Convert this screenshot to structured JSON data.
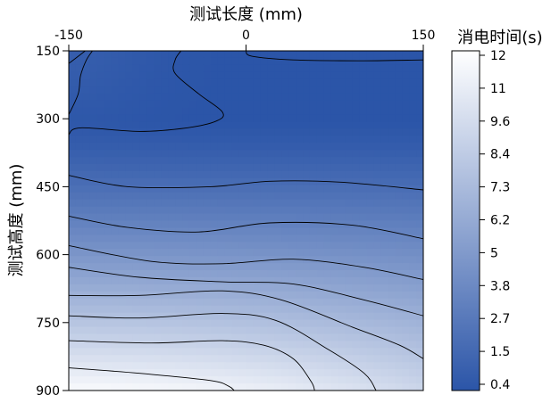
{
  "chart_data": {
    "type": "heatmap",
    "subtype": "filled-contour",
    "title": "",
    "xlabel": "测试长度 (mm)",
    "ylabel": "测试高度 (mm)",
    "x_ticks": [
      "-150",
      "0",
      "150"
    ],
    "x_tick_values": [
      -150,
      0,
      150
    ],
    "x_axis_position": "top",
    "xlim": [
      -150,
      150
    ],
    "y_ticks": [
      "150",
      "300",
      "450",
      "600",
      "750",
      "900"
    ],
    "y_tick_values": [
      150,
      300,
      450,
      600,
      750,
      900
    ],
    "ylim": [
      150,
      900
    ],
    "y_inverted": true,
    "grid": false,
    "colorbar": {
      "label": "消电时间(s)",
      "ticks": [
        "12",
        "11",
        "9.6",
        "8.4",
        "7.3",
        "6.2",
        "5",
        "3.8",
        "2.7",
        "1.5",
        "0.4"
      ],
      "tick_values": [
        12,
        11,
        9.6,
        8.4,
        7.3,
        6.2,
        5,
        3.8,
        2.7,
        1.5,
        0.4
      ],
      "range": [
        0.4,
        12
      ],
      "color_low": "#2b55a8",
      "color_high": "#ffffff",
      "placement": "right"
    },
    "contour_lines": [
      {
        "points": [
          [
            -150,
            178
          ],
          [
            -136,
            150
          ]
        ]
      },
      {
        "points": [
          [
            -150,
            291
          ],
          [
            -142,
            245
          ],
          [
            -140,
            205
          ],
          [
            -135,
            170
          ],
          [
            -130,
            150
          ]
        ]
      },
      {
        "points": [
          [
            -150,
            335
          ],
          [
            -140,
            320
          ],
          [
            -90,
            328
          ],
          [
            -50,
            320
          ],
          [
            -25,
            305
          ],
          [
            -20,
            285
          ],
          [
            -40,
            245
          ],
          [
            -60,
            200
          ],
          [
            -60,
            170
          ],
          [
            -55,
            150
          ]
        ]
      },
      {
        "points": [
          [
            0,
            150
          ],
          [
            5,
            162
          ],
          [
            40,
            170
          ],
          [
            100,
            172
          ],
          [
            150,
            170
          ]
        ]
      },
      {
        "points": [
          [
            -150,
            425
          ],
          [
            -100,
            450
          ],
          [
            -30,
            450
          ],
          [
            20,
            438
          ],
          [
            80,
            440
          ],
          [
            150,
            457
          ]
        ]
      },
      {
        "points": [
          [
            -150,
            515
          ],
          [
            -100,
            540
          ],
          [
            -40,
            550
          ],
          [
            20,
            530
          ],
          [
            90,
            535
          ],
          [
            150,
            565
          ]
        ]
      },
      {
        "points": [
          [
            -150,
            580
          ],
          [
            -80,
            615
          ],
          [
            -20,
            620
          ],
          [
            40,
            610
          ],
          [
            100,
            628
          ],
          [
            150,
            655
          ]
        ]
      },
      {
        "points": [
          [
            -150,
            628
          ],
          [
            -90,
            650
          ],
          [
            -20,
            660
          ],
          [
            40,
            665
          ],
          [
            100,
            700
          ],
          [
            150,
            735
          ]
        ]
      },
      {
        "points": [
          [
            -150,
            690
          ],
          [
            -90,
            690
          ],
          [
            -20,
            680
          ],
          [
            30,
            700
          ],
          [
            90,
            760
          ],
          [
            130,
            800
          ],
          [
            150,
            830
          ]
        ]
      },
      {
        "points": [
          [
            -150,
            735
          ],
          [
            -90,
            740
          ],
          [
            -20,
            730
          ],
          [
            25,
            745
          ],
          [
            70,
            810
          ],
          [
            100,
            862
          ],
          [
            110,
            900
          ]
        ]
      },
      {
        "points": [
          [
            -150,
            790
          ],
          [
            -80,
            795
          ],
          [
            -20,
            790
          ],
          [
            15,
            800
          ],
          [
            40,
            830
          ],
          [
            55,
            880
          ],
          [
            58,
            900
          ]
        ]
      },
      {
        "points": [
          [
            -150,
            850
          ],
          [
            -90,
            862
          ],
          [
            -30,
            878
          ],
          [
            -15,
            890
          ],
          [
            -10,
            900
          ]
        ]
      }
    ]
  }
}
